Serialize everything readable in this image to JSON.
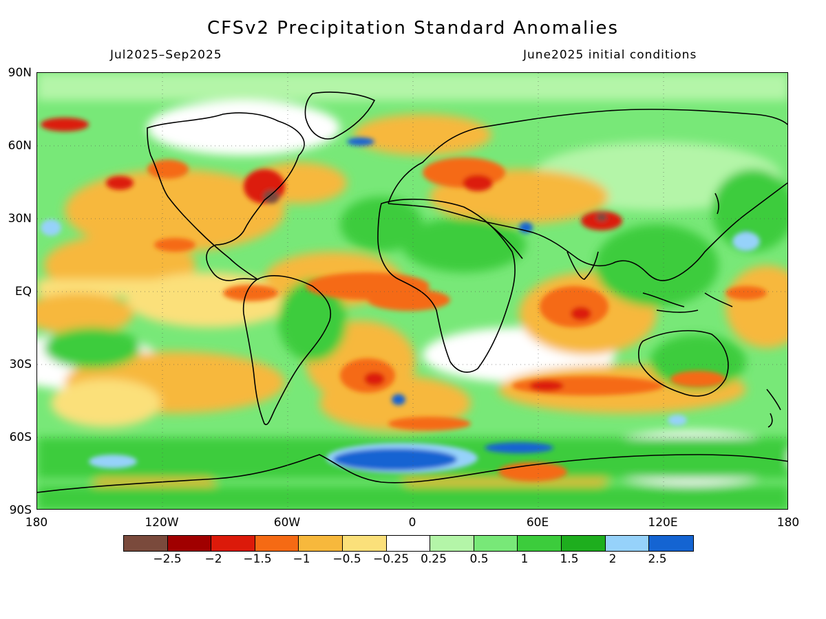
{
  "title": "CFSv2 Precipitation Standard Anomalies",
  "period": "Jul2025–Sep2025",
  "initial_conditions": "June2025 initial conditions",
  "lat_labels": [
    "90N",
    "60N",
    "30N",
    "EQ",
    "30S",
    "60S",
    "90S"
  ],
  "lon_labels": [
    "180",
    "120W",
    "60W",
    "0",
    "60E",
    "120E",
    "180"
  ],
  "colorbar": {
    "colors": [
      "#7a4a3c",
      "#a00000",
      "#dc1a0a",
      "#f56a14",
      "#f7b83c",
      "#fbe07a",
      "#ffffff",
      "#b4f5a8",
      "#78e878",
      "#3ccc3c",
      "#1eae1e",
      "#96d2fa",
      "#1464d2"
    ],
    "labels": [
      "−2.5",
      "−2",
      "−1.5",
      "−1",
      "−0.5",
      "−0.25",
      "0.25",
      "0.5",
      "1",
      "1.5",
      "2",
      "2.5"
    ]
  }
}
